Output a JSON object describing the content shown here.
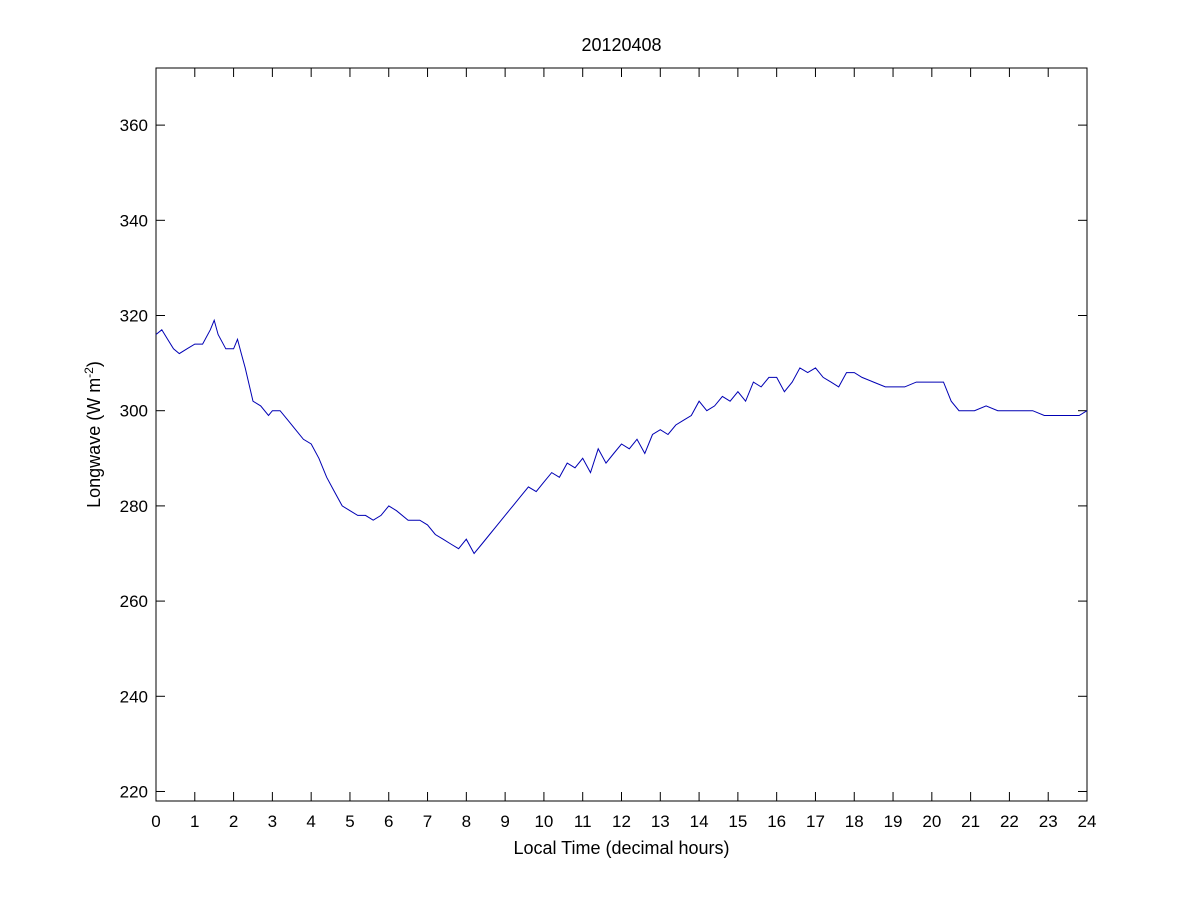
{
  "chart_data": {
    "type": "line",
    "title": "20120408",
    "xlabel": "Local Time (decimal hours)",
    "ylabel": {
      "text": "Longwave (W m",
      "superscript": "-2",
      "suffix": ")"
    },
    "xlim": [
      0,
      24
    ],
    "ylim": [
      218,
      372
    ],
    "xticks": [
      0,
      1,
      2,
      3,
      4,
      5,
      6,
      7,
      8,
      9,
      10,
      11,
      12,
      13,
      14,
      15,
      16,
      17,
      18,
      19,
      20,
      21,
      22,
      23,
      24
    ],
    "xtick_labels": [
      "0",
      "1",
      "2",
      "3",
      "4",
      "5",
      "6",
      "7",
      "8",
      "9",
      "10",
      "11",
      "12",
      "13",
      "14",
      "15",
      "16",
      "17",
      "18",
      "19",
      "20",
      "21",
      "22",
      "23",
      "24"
    ],
    "yticks": [
      220,
      240,
      260,
      280,
      300,
      320,
      340,
      360
    ],
    "ytick_labels": [
      "220",
      "240",
      "260",
      "280",
      "300",
      "320",
      "340",
      "360"
    ],
    "grid": false,
    "legend": "none",
    "line_color": "#0000b4",
    "series": [
      {
        "x": [
          0,
          0.15,
          0.3,
          0.45,
          0.6,
          0.8,
          1.0,
          1.2,
          1.4,
          1.5,
          1.6,
          1.8,
          2.0,
          2.1,
          2.2,
          2.3,
          2.5,
          2.7,
          2.9,
          3.0,
          3.2,
          3.4,
          3.6,
          3.8,
          4.0,
          4.2,
          4.4,
          4.6,
          4.8,
          5.0,
          5.2,
          5.4,
          5.6,
          5.8,
          6.0,
          6.2,
          6.5,
          6.8,
          7.0,
          7.2,
          7.4,
          7.6,
          7.8,
          8.0,
          8.2,
          8.4,
          8.6,
          8.8,
          9.0,
          9.2,
          9.4,
          9.6,
          9.8,
          10.0,
          10.2,
          10.4,
          10.6,
          10.8,
          11.0,
          11.2,
          11.4,
          11.6,
          11.8,
          12.0,
          12.2,
          12.4,
          12.6,
          12.8,
          13.0,
          13.2,
          13.4,
          13.6,
          13.8,
          14.0,
          14.2,
          14.4,
          14.6,
          14.8,
          15.0,
          15.2,
          15.4,
          15.6,
          15.8,
          16.0,
          16.2,
          16.4,
          16.6,
          16.8,
          17.0,
          17.2,
          17.4,
          17.6,
          17.8,
          18.0,
          18.2,
          18.5,
          18.8,
          19.0,
          19.3,
          19.6,
          19.9,
          20.1,
          20.3,
          20.5,
          20.7,
          20.9,
          21.1,
          21.4,
          21.7,
          22.0,
          22.3,
          22.6,
          22.9,
          23.2,
          23.5,
          23.8,
          24.0
        ],
        "y": [
          316,
          317,
          315,
          313,
          312,
          313,
          314,
          314,
          317,
          319,
          316,
          313,
          313,
          315,
          312,
          309,
          302,
          301,
          299,
          300,
          300,
          298,
          296,
          294,
          293,
          290,
          286,
          283,
          280,
          279,
          278,
          278,
          277,
          278,
          280,
          279,
          277,
          277,
          276,
          274,
          273,
          272,
          271,
          273,
          270,
          272,
          274,
          276,
          278,
          280,
          282,
          284,
          283,
          285,
          287,
          286,
          289,
          288,
          290,
          287,
          292,
          289,
          291,
          293,
          292,
          294,
          291,
          295,
          296,
          295,
          297,
          298,
          299,
          302,
          300,
          301,
          303,
          302,
          304,
          302,
          306,
          305,
          307,
          307,
          304,
          306,
          309,
          308,
          309,
          307,
          306,
          305,
          308,
          308,
          307,
          306,
          305,
          305,
          305,
          306,
          306,
          306,
          306,
          302,
          300,
          300,
          300,
          301,
          300,
          300,
          300,
          300,
          299,
          299,
          299,
          299,
          300
        ]
      }
    ]
  }
}
